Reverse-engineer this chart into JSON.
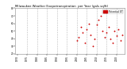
{
  "title": "Milwaukee Weather Evapotranspiration  per Year (gals sq/ft)",
  "title_fontsize": 2.8,
  "bg_color": "#ffffff",
  "dot_color": "#cc0000",
  "legend_bar_color": "#cc0000",
  "legend_label": "Potential ET",
  "years": [
    2000,
    2001,
    2002,
    2003,
    2004,
    2005,
    2006,
    2007,
    2008,
    2009,
    2010,
    2011,
    2012,
    2013,
    2014,
    2015,
    2016,
    2017,
    2018,
    2019,
    2020,
    2021,
    2022,
    2023
  ],
  "values": [
    38,
    42,
    55,
    48,
    35,
    52,
    60,
    45,
    30,
    40,
    58,
    65,
    70,
    50,
    42,
    48,
    55,
    40,
    35,
    50,
    44,
    52,
    38,
    45
  ],
  "ylim": [
    20,
    80
  ],
  "xlim": [
    1969,
    2024
  ],
  "grid_years": [
    1975,
    1980,
    1985,
    1990,
    1995,
    2000,
    2005,
    2010,
    2015,
    2020
  ],
  "tick_fontsize": 2.0,
  "ytick_labels": [
    "20",
    "30",
    "40",
    "50",
    "60",
    "70",
    "80"
  ],
  "ytick_vals": [
    20,
    30,
    40,
    50,
    60,
    70,
    80
  ],
  "xtick_years": [
    1970,
    1975,
    1980,
    1985,
    1990,
    1995,
    2000,
    2005,
    2010,
    2015,
    2020
  ],
  "marker_size": 1.8,
  "dpi": 100,
  "figw": 1.6,
  "figh": 0.87
}
